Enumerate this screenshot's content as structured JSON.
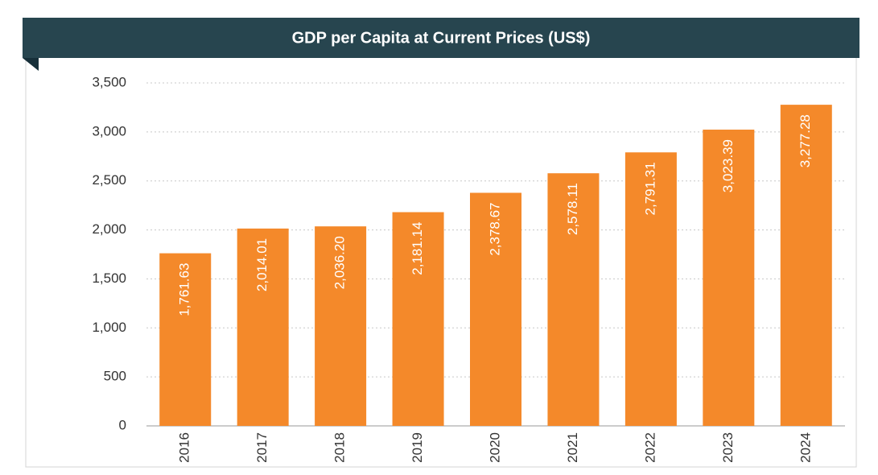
{
  "chart_data": {
    "type": "bar",
    "title": "GDP per Capita at Current Prices (US$)",
    "categories": [
      "2016",
      "2017",
      "2018",
      "2019",
      "2020",
      "2021",
      "2022",
      "2023",
      "2024"
    ],
    "values": [
      1761.63,
      2014.01,
      2036.2,
      2181.14,
      2378.67,
      2578.11,
      2791.31,
      3023.39,
      3277.28
    ],
    "value_labels": [
      "1,761.63",
      "2,014.01",
      "2,036.20",
      "2,181.14",
      "2,378.67",
      "2,578.11",
      "2,791.31",
      "3,023.39",
      "3,277.28"
    ],
    "color": "#f4892a",
    "ylim": [
      0,
      3500
    ],
    "yticks": [
      0,
      500,
      {
        "value": 1000,
        "label": "1,000"
      },
      {
        "value": 1500,
        "label": "1,500"
      },
      {
        "value": 2000,
        "label": "2,000"
      },
      {
        "value": 2500,
        "label": "2,500"
      },
      {
        "value": 3000,
        "label": "3,000"
      },
      {
        "value": 3500,
        "label": "3,500"
      }
    ],
    "grid": true
  }
}
